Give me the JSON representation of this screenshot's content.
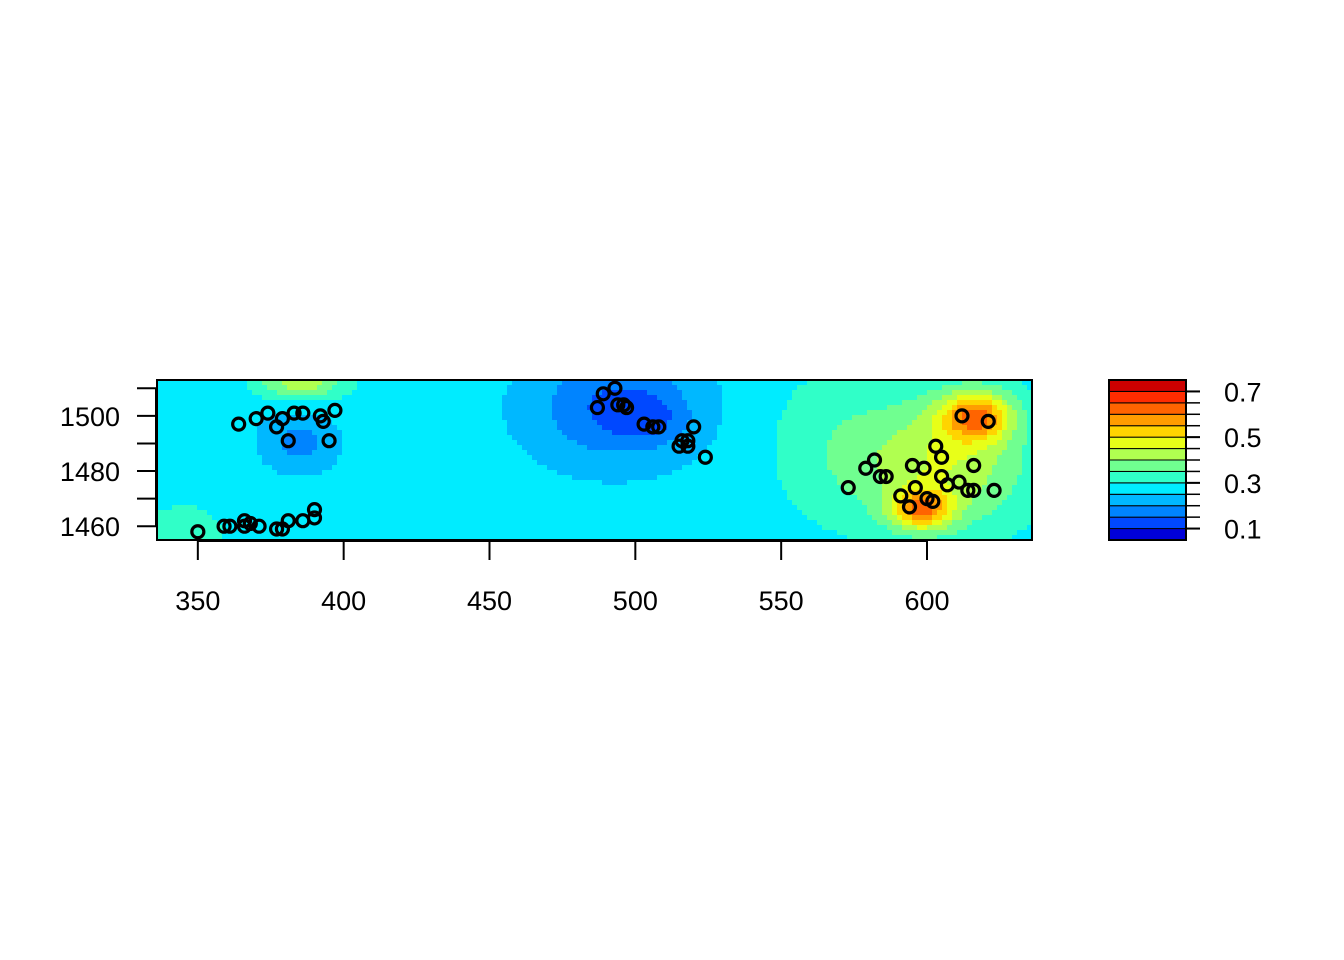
{
  "chart_data": {
    "type": "heatmap",
    "title": "",
    "xlabel": "",
    "ylabel": "",
    "xlim": [
      336,
      636
    ],
    "ylim": [
      1455,
      1513
    ],
    "x_ticks": [
      350,
      400,
      450,
      500,
      550,
      600
    ],
    "y_ticks": [
      1460,
      1480,
      1500
    ],
    "y_minor_ticks": [
      1470,
      1490,
      1510
    ],
    "grid": false,
    "legend": "right",
    "colorbar": {
      "levels": [
        0.05,
        0.1,
        0.15,
        0.2,
        0.25,
        0.3,
        0.35,
        0.4,
        0.45,
        0.5,
        0.55,
        0.6,
        0.65,
        0.7,
        0.75
      ],
      "colors": [
        "#0000d8",
        "#0048ff",
        "#0084ff",
        "#00b8ff",
        "#00ecff",
        "#30ffc8",
        "#70ff90",
        "#b0ff50",
        "#e8ff18",
        "#ffd400",
        "#ff9c00",
        "#ff6400",
        "#ff2c00",
        "#cc0000"
      ],
      "ticks": [
        0.1,
        0.3,
        0.5,
        0.7
      ],
      "tick_labels": [
        "0.1",
        "0.3",
        "0.5",
        "0.7"
      ]
    },
    "surface": {
      "base": 0.27,
      "kernels": [
        {
          "x": 385,
          "y": 1490,
          "sx": 12,
          "sy": 10,
          "a": -0.09
        },
        {
          "x": 493,
          "y": 1503,
          "sx": 28,
          "sy": 20,
          "a": -0.13
        },
        {
          "x": 505,
          "y": 1499,
          "sx": 12,
          "sy": 8,
          "a": -0.06
        },
        {
          "x": 385,
          "y": 1512,
          "sx": 15,
          "sy": 6,
          "a": 0.16
        },
        {
          "x": 345,
          "y": 1458,
          "sx": 14,
          "sy": 10,
          "a": 0.07
        },
        {
          "x": 355,
          "y": 1502,
          "sx": 14,
          "sy": 12,
          "a": -0.02
        },
        {
          "x": 605,
          "y": 1483,
          "sx": 30,
          "sy": 25,
          "a": 0.18
        },
        {
          "x": 617,
          "y": 1500,
          "sx": 12,
          "sy": 9,
          "a": 0.27
        },
        {
          "x": 598,
          "y": 1466,
          "sx": 10,
          "sy": 7,
          "a": 0.26
        },
        {
          "x": 565,
          "y": 1490,
          "sx": 22,
          "sy": 30,
          "a": 0.05
        }
      ]
    },
    "points": [
      [
        350,
        1458
      ],
      [
        359,
        1460
      ],
      [
        361,
        1460
      ],
      [
        366,
        1462
      ],
      [
        366,
        1460
      ],
      [
        368,
        1461
      ],
      [
        371,
        1460
      ],
      [
        377,
        1459
      ],
      [
        379,
        1459
      ],
      [
        381,
        1462
      ],
      [
        386,
        1462
      ],
      [
        390,
        1463
      ],
      [
        390,
        1466
      ],
      [
        364,
        1497
      ],
      [
        370,
        1499
      ],
      [
        374,
        1501
      ],
      [
        377,
        1496
      ],
      [
        379,
        1499
      ],
      [
        381,
        1491
      ],
      [
        383,
        1501
      ],
      [
        386,
        1501
      ],
      [
        392,
        1500
      ],
      [
        393,
        1498
      ],
      [
        395,
        1491
      ],
      [
        397,
        1502
      ],
      [
        487,
        1503
      ],
      [
        489,
        1508
      ],
      [
        493,
        1510
      ],
      [
        494,
        1504
      ],
      [
        496,
        1504
      ],
      [
        497,
        1503
      ],
      [
        503,
        1497
      ],
      [
        506,
        1496
      ],
      [
        508,
        1496
      ],
      [
        515,
        1489
      ],
      [
        516,
        1491
      ],
      [
        518,
        1491
      ],
      [
        518,
        1489
      ],
      [
        520,
        1496
      ],
      [
        524,
        1485
      ],
      [
        573,
        1474
      ],
      [
        579,
        1481
      ],
      [
        582,
        1484
      ],
      [
        584,
        1478
      ],
      [
        586,
        1478
      ],
      [
        591,
        1471
      ],
      [
        594,
        1467
      ],
      [
        595,
        1482
      ],
      [
        596,
        1474
      ],
      [
        599,
        1481
      ],
      [
        600,
        1470
      ],
      [
        602,
        1469
      ],
      [
        603,
        1489
      ],
      [
        605,
        1478
      ],
      [
        605,
        1485
      ],
      [
        607,
        1475
      ],
      [
        611,
        1476
      ],
      [
        612,
        1500
      ],
      [
        614,
        1473
      ],
      [
        616,
        1473
      ],
      [
        616,
        1482
      ],
      [
        621,
        1498
      ],
      [
        623,
        1473
      ]
    ]
  }
}
